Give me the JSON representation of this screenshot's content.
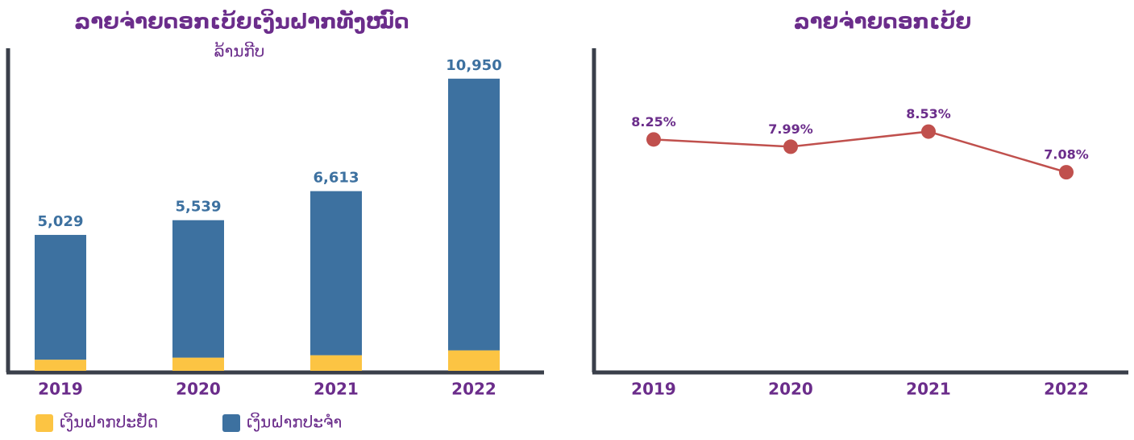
{
  "chart_data": [
    {
      "type": "stacked_bar",
      "title": "ລາຍຈ່າຍດອກເບ້ຍເງິນຝາກທັງໝົດ",
      "subtitle": "ລ້ານກີບ",
      "categories": [
        "2019",
        "2020",
        "2021",
        "2022"
      ],
      "series": [
        {
          "name": "ເງິນຝາກປະຢັດ",
          "color": "#fcc443",
          "values": [
            449,
            532,
            629,
            825
          ]
        },
        {
          "name": "ເງິນຝາກປະຈຳ",
          "color": "#3d71a0",
          "values": [
            5029,
            5539,
            6613,
            10950
          ],
          "value_labels": [
            "5,029",
            "5,539",
            "6,613",
            "10,950"
          ]
        }
      ],
      "ylim": [
        0,
        13000
      ]
    },
    {
      "type": "line",
      "title": "ລາຍຈ່າຍດອກເບ້ຍ",
      "categories": [
        "2019",
        "2020",
        "2021",
        "2022"
      ],
      "series": [
        {
          "name": null,
          "color": "#c0504d",
          "values": [
            8.25,
            7.99,
            8.53,
            7.08
          ],
          "value_labels": [
            "8.25%",
            "7.99%",
            "8.53%",
            "7.08%"
          ]
        }
      ],
      "ylim": [
        0,
        11.5
      ]
    }
  ]
}
